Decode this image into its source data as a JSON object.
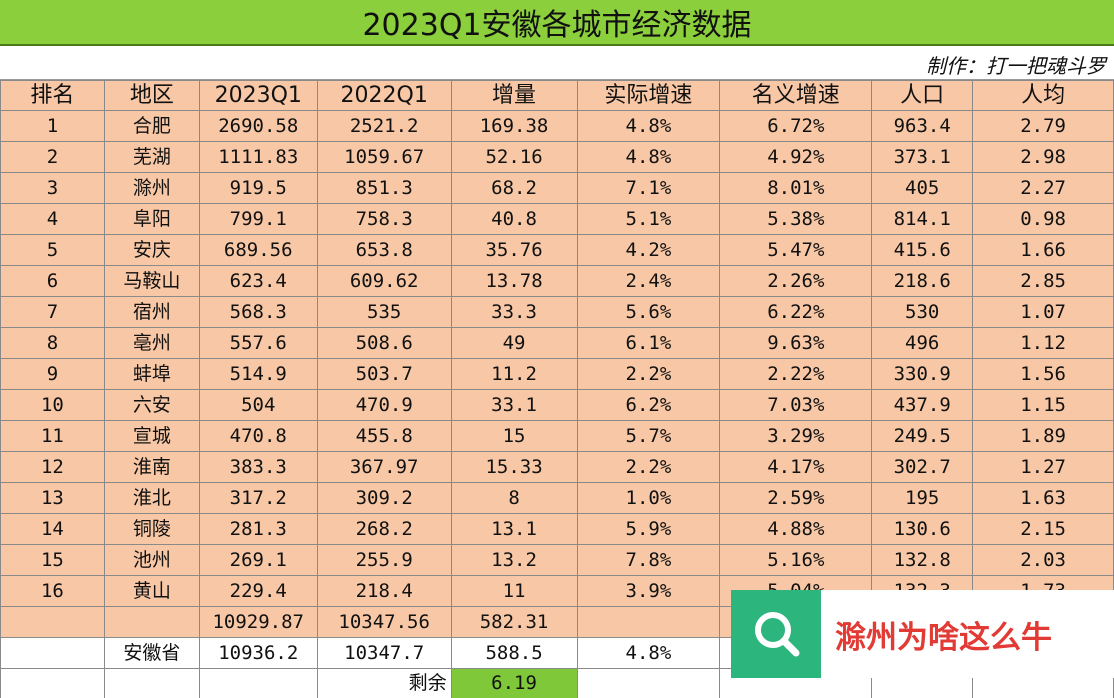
{
  "title": "2023Q1安徽各城市经济数据",
  "author": "制作：打一把魂斗罗",
  "headers": [
    "排名",
    "地区",
    "2023Q1",
    "2022Q1",
    "增量",
    "实际增速",
    "名义增速",
    "人口",
    "人均"
  ],
  "rows": [
    [
      "1",
      "合肥",
      "2690.58",
      "2521.2",
      "169.38",
      "4.8%",
      "6.72%",
      "963.4",
      "2.79"
    ],
    [
      "2",
      "芜湖",
      "1111.83",
      "1059.67",
      "52.16",
      "4.8%",
      "4.92%",
      "373.1",
      "2.98"
    ],
    [
      "3",
      "滁州",
      "919.5",
      "851.3",
      "68.2",
      "7.1%",
      "8.01%",
      "405",
      "2.27"
    ],
    [
      "4",
      "阜阳",
      "799.1",
      "758.3",
      "40.8",
      "5.1%",
      "5.38%",
      "814.1",
      "0.98"
    ],
    [
      "5",
      "安庆",
      "689.56",
      "653.8",
      "35.76",
      "4.2%",
      "5.47%",
      "415.6",
      "1.66"
    ],
    [
      "6",
      "马鞍山",
      "623.4",
      "609.62",
      "13.78",
      "2.4%",
      "2.26%",
      "218.6",
      "2.85"
    ],
    [
      "7",
      "宿州",
      "568.3",
      "535",
      "33.3",
      "5.6%",
      "6.22%",
      "530",
      "1.07"
    ],
    [
      "8",
      "亳州",
      "557.6",
      "508.6",
      "49",
      "6.1%",
      "9.63%",
      "496",
      "1.12"
    ],
    [
      "9",
      "蚌埠",
      "514.9",
      "503.7",
      "11.2",
      "2.2%",
      "2.22%",
      "330.9",
      "1.56"
    ],
    [
      "10",
      "六安",
      "504",
      "470.9",
      "33.1",
      "6.2%",
      "7.03%",
      "437.9",
      "1.15"
    ],
    [
      "11",
      "宣城",
      "470.8",
      "455.8",
      "15",
      "5.7%",
      "3.29%",
      "249.5",
      "1.89"
    ],
    [
      "12",
      "淮南",
      "383.3",
      "367.97",
      "15.33",
      "2.2%",
      "4.17%",
      "302.7",
      "1.27"
    ],
    [
      "13",
      "淮北",
      "317.2",
      "309.2",
      "8",
      "1.0%",
      "2.59%",
      "195",
      "1.63"
    ],
    [
      "14",
      "铜陵",
      "281.3",
      "268.2",
      "13.1",
      "5.9%",
      "4.88%",
      "130.6",
      "2.15"
    ],
    [
      "15",
      "池州",
      "269.1",
      "255.9",
      "13.2",
      "7.8%",
      "5.16%",
      "132.8",
      "2.03"
    ],
    [
      "16",
      "黄山",
      "229.4",
      "218.4",
      "11",
      "3.9%",
      "5.04%",
      "132.3",
      "1.73"
    ]
  ],
  "sum_row": [
    "",
    "",
    "10929.87",
    "10347.56",
    "582.31",
    "",
    "",
    "",
    ""
  ],
  "province_row": [
    "",
    "安徽省",
    "10936.2",
    "10347.7",
    "588.5",
    "4.8%",
    "",
    "",
    ""
  ],
  "remainder": {
    "label": "剩余",
    "value": "6.19"
  },
  "overlay": {
    "icon": "search-icon",
    "text": "滁州为啥这么牛",
    "icon_color": "#2cb67d",
    "text_color": "#e23a34"
  }
}
